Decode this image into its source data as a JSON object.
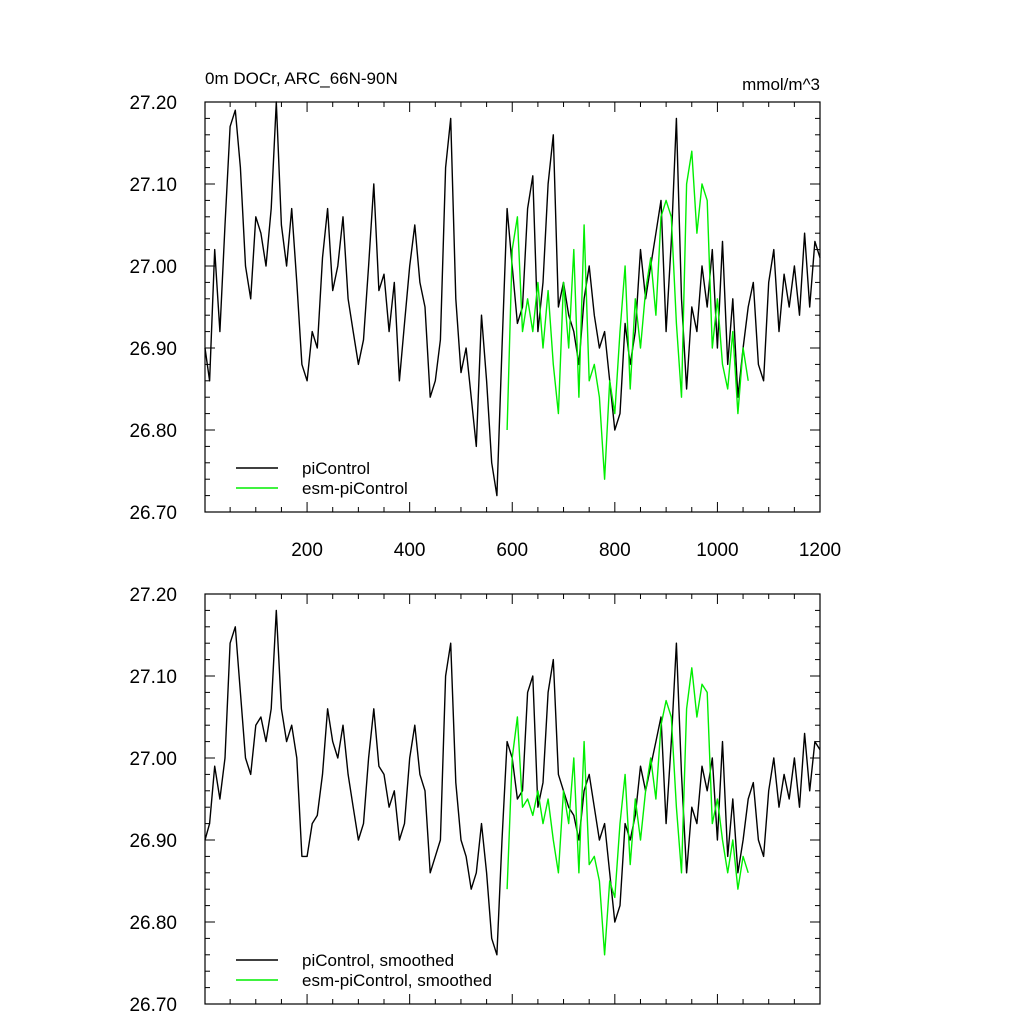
{
  "colors": {
    "piControl": "#000000",
    "esm_piControl": "#00ee00",
    "axis": "#000000"
  },
  "chart_data": [
    {
      "type": "line",
      "title": "0m DOCr, ARC_66N-90N",
      "units": "mmol/m^3",
      "xlim": [
        1,
        1200
      ],
      "ylim": [
        26.7,
        27.2
      ],
      "xticks": [
        200,
        400,
        600,
        800,
        1000,
        1200
      ],
      "xticklabels": [
        "200",
        "400",
        "600",
        "800",
        "1000",
        "1200"
      ],
      "yticks": [
        26.7,
        26.8,
        26.9,
        27.0,
        27.1,
        27.2
      ],
      "yticklabels": [
        "26.70",
        "26.80",
        "26.90",
        "27.00",
        "27.10",
        "27.20"
      ],
      "legend_position": "bottom-left",
      "series": [
        {
          "name": "piControl",
          "color": "#000000",
          "x": [
            1,
            10,
            20,
            30,
            40,
            50,
            60,
            70,
            80,
            90,
            100,
            110,
            120,
            130,
            140,
            150,
            160,
            170,
            180,
            190,
            200,
            210,
            220,
            230,
            240,
            250,
            260,
            270,
            280,
            290,
            300,
            310,
            320,
            330,
            340,
            350,
            360,
            370,
            380,
            390,
            400,
            410,
            420,
            430,
            440,
            450,
            460,
            470,
            480,
            490,
            500,
            510,
            520,
            530,
            540,
            550,
            560,
            570,
            580,
            590,
            600,
            610,
            620,
            630,
            640,
            650,
            660,
            670,
            680,
            690,
            700,
            710,
            720,
            730,
            740,
            750,
            760,
            770,
            780,
            790,
            800,
            810,
            820,
            830,
            840,
            850,
            860,
            870,
            880,
            890,
            900,
            910,
            920,
            930,
            940,
            950,
            960,
            970,
            980,
            990,
            1000,
            1010,
            1020,
            1030,
            1040,
            1050,
            1060,
            1070,
            1080,
            1090,
            1100,
            1110,
            1120,
            1130,
            1140,
            1150,
            1160,
            1170,
            1180,
            1190,
            1200
          ],
          "values": [
            26.9,
            26.86,
            27.02,
            26.92,
            27.05,
            27.17,
            27.19,
            27.12,
            27.0,
            26.96,
            27.06,
            27.04,
            27.0,
            27.07,
            27.2,
            27.05,
            27.0,
            27.07,
            26.98,
            26.88,
            26.86,
            26.92,
            26.9,
            27.01,
            27.07,
            26.97,
            27.0,
            27.06,
            26.96,
            26.92,
            26.88,
            26.91,
            27.0,
            27.1,
            26.97,
            26.99,
            26.92,
            26.98,
            26.86,
            26.93,
            27.0,
            27.05,
            26.98,
            26.95,
            26.84,
            26.86,
            26.91,
            27.12,
            27.18,
            26.96,
            26.87,
            26.9,
            26.84,
            26.78,
            26.94,
            26.86,
            26.76,
            26.72,
            26.9,
            27.07,
            27.0,
            26.93,
            26.95,
            27.07,
            27.11,
            26.92,
            26.98,
            27.1,
            27.16,
            26.95,
            26.98,
            26.94,
            26.92,
            26.88,
            26.96,
            27.0,
            26.94,
            26.9,
            26.92,
            26.86,
            26.8,
            26.82,
            26.93,
            26.88,
            26.92,
            27.02,
            26.96,
            27.0,
            27.04,
            27.08,
            26.92,
            27.03,
            27.18,
            26.96,
            26.85,
            26.95,
            26.92,
            27.0,
            26.95,
            27.02,
            26.9,
            27.03,
            26.88,
            26.96,
            26.84,
            26.9,
            26.95,
            26.98,
            26.88,
            26.86,
            26.98,
            27.02,
            26.92,
            26.99,
            26.95,
            27.0,
            26.94,
            27.04,
            26.95,
            27.03,
            27.01
          ]
        },
        {
          "name": "esm-piControl",
          "color": "#00ee00",
          "x": [
            590,
            600,
            610,
            620,
            630,
            640,
            650,
            660,
            670,
            680,
            690,
            700,
            710,
            720,
            730,
            740,
            750,
            760,
            770,
            780,
            790,
            800,
            810,
            820,
            830,
            840,
            850,
            860,
            870,
            880,
            890,
            900,
            910,
            920,
            930,
            940,
            950,
            960,
            970,
            980,
            990,
            1000,
            1010,
            1020,
            1030,
            1040,
            1050,
            1060
          ],
          "values": [
            26.8,
            27.02,
            27.06,
            26.92,
            26.96,
            26.92,
            26.98,
            26.9,
            26.97,
            26.88,
            26.82,
            26.98,
            26.9,
            27.02,
            26.84,
            27.05,
            26.86,
            26.88,
            26.84,
            26.74,
            26.86,
            26.82,
            26.92,
            27.0,
            26.85,
            26.96,
            26.9,
            26.97,
            27.01,
            26.94,
            27.06,
            27.08,
            27.06,
            26.93,
            26.84,
            27.1,
            27.14,
            27.04,
            27.1,
            27.08,
            26.9,
            26.96,
            26.88,
            26.85,
            26.92,
            26.82,
            26.9,
            26.86
          ]
        }
      ]
    },
    {
      "type": "line",
      "xlim": [
        1,
        1200
      ],
      "ylim": [
        26.7,
        27.2
      ],
      "xticks": [
        200,
        400,
        600,
        800,
        1000,
        1200
      ],
      "yticks": [
        26.7,
        26.8,
        26.9,
        27.0,
        27.1,
        27.2
      ],
      "yticklabels": [
        "26.70",
        "26.80",
        "26.90",
        "27.00",
        "27.10",
        "27.20"
      ],
      "legend_position": "bottom-left",
      "series": [
        {
          "name": "piControl, smoothed",
          "color": "#000000",
          "x": [
            1,
            10,
            20,
            30,
            40,
            50,
            60,
            70,
            80,
            90,
            100,
            110,
            120,
            130,
            140,
            150,
            160,
            170,
            180,
            190,
            200,
            210,
            220,
            230,
            240,
            250,
            260,
            270,
            280,
            290,
            300,
            310,
            320,
            330,
            340,
            350,
            360,
            370,
            380,
            390,
            400,
            410,
            420,
            430,
            440,
            450,
            460,
            470,
            480,
            490,
            500,
            510,
            520,
            530,
            540,
            550,
            560,
            570,
            580,
            590,
            600,
            610,
            620,
            630,
            640,
            650,
            660,
            670,
            680,
            690,
            700,
            710,
            720,
            730,
            740,
            750,
            760,
            770,
            780,
            790,
            800,
            810,
            820,
            830,
            840,
            850,
            860,
            870,
            880,
            890,
            900,
            910,
            920,
            930,
            940,
            950,
            960,
            970,
            980,
            990,
            1000,
            1010,
            1020,
            1030,
            1040,
            1050,
            1060,
            1070,
            1080,
            1090,
            1100,
            1110,
            1120,
            1130,
            1140,
            1150,
            1160,
            1170,
            1180,
            1190,
            1200
          ],
          "values": [
            26.9,
            26.92,
            26.99,
            26.95,
            27.0,
            27.14,
            27.16,
            27.08,
            27.0,
            26.98,
            27.04,
            27.05,
            27.02,
            27.06,
            27.18,
            27.06,
            27.02,
            27.04,
            27.0,
            26.88,
            26.88,
            26.92,
            26.93,
            26.98,
            27.06,
            27.02,
            27.0,
            27.04,
            26.98,
            26.94,
            26.9,
            26.92,
            27.0,
            27.06,
            26.99,
            26.98,
            26.94,
            26.96,
            26.9,
            26.92,
            27.0,
            27.04,
            26.98,
            26.96,
            26.86,
            26.88,
            26.9,
            27.1,
            27.14,
            26.97,
            26.9,
            26.88,
            26.84,
            26.86,
            26.92,
            26.86,
            26.78,
            26.76,
            26.9,
            27.02,
            27.0,
            26.95,
            26.96,
            27.08,
            27.1,
            26.94,
            26.97,
            27.08,
            27.12,
            26.98,
            26.96,
            26.94,
            26.93,
            26.9,
            26.96,
            26.98,
            26.94,
            26.9,
            26.92,
            26.86,
            26.8,
            26.82,
            26.92,
            26.9,
            26.93,
            26.99,
            26.96,
            26.99,
            27.02,
            27.05,
            26.92,
            27.02,
            27.14,
            26.98,
            26.86,
            26.94,
            26.92,
            26.99,
            26.96,
            27.0,
            26.9,
            27.02,
            26.88,
            26.95,
            26.86,
            26.9,
            26.95,
            26.97,
            26.9,
            26.88,
            26.96,
            27.0,
            26.94,
            26.98,
            26.95,
            27.0,
            26.94,
            27.03,
            26.96,
            27.02,
            27.01
          ]
        },
        {
          "name": "esm-piControl, smoothed",
          "color": "#00ee00",
          "x": [
            590,
            600,
            610,
            620,
            630,
            640,
            650,
            660,
            670,
            680,
            690,
            700,
            710,
            720,
            730,
            740,
            750,
            760,
            770,
            780,
            790,
            800,
            810,
            820,
            830,
            840,
            850,
            860,
            870,
            880,
            890,
            900,
            910,
            920,
            930,
            940,
            950,
            960,
            970,
            980,
            990,
            1000,
            1010,
            1020,
            1030,
            1040,
            1050,
            1060
          ],
          "values": [
            26.84,
            27.0,
            27.05,
            26.94,
            26.95,
            26.93,
            26.96,
            26.92,
            26.95,
            26.9,
            26.86,
            26.96,
            26.92,
            27.0,
            26.86,
            27.02,
            26.87,
            26.88,
            26.85,
            26.76,
            26.85,
            26.83,
            26.92,
            26.98,
            26.87,
            26.95,
            26.9,
            26.96,
            27.0,
            26.95,
            27.04,
            27.07,
            27.05,
            26.94,
            26.86,
            27.06,
            27.11,
            27.05,
            27.09,
            27.08,
            26.92,
            26.95,
            26.9,
            26.86,
            26.9,
            26.84,
            26.88,
            26.86
          ]
        }
      ]
    }
  ]
}
